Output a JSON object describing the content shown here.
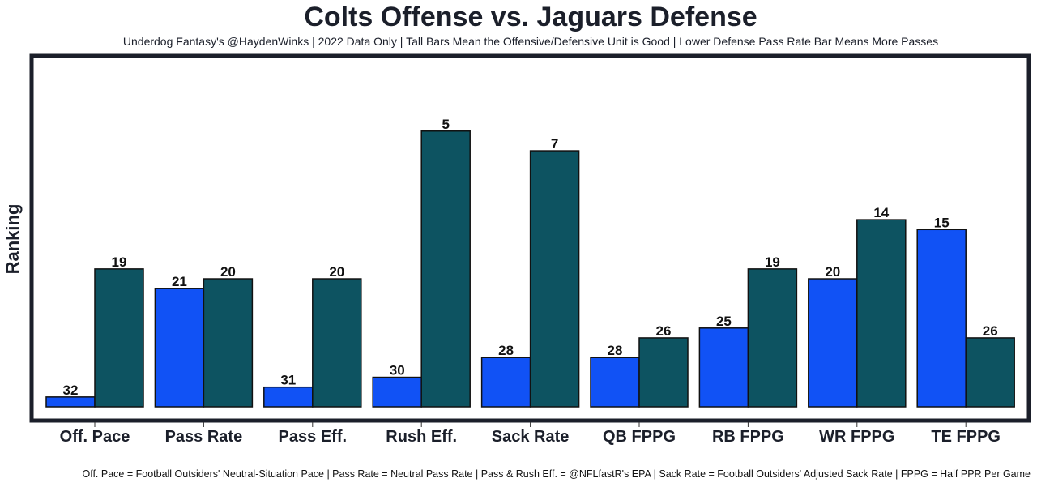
{
  "chart_data": {
    "type": "bar",
    "title": "Colts Offense vs. Jaguars Defense",
    "subtitle": "Underdog Fantasy's @HaydenWinks | 2022 Data Only | Tall Bars Mean the Offensive/Defensive Unit is Good | Lower Defense Pass Rate Bar Means More Passes",
    "xlabel": "",
    "ylabel": "Ranking",
    "categories": [
      "Off. Pace",
      "Pass Rate",
      "Pass Eff.",
      "Rush Eff.",
      "Sack Rate",
      "QB FPPG",
      "RB FPPG",
      "WR FPPG",
      "TE FPPG"
    ],
    "series": [
      {
        "name": "Colts Offense",
        "color": "#1152f5",
        "values": [
          32,
          21,
          31,
          30,
          28,
          28,
          25,
          20,
          15
        ]
      },
      {
        "name": "Jaguars Defense",
        "color": "#0d5361",
        "values": [
          19,
          20,
          20,
          5,
          7,
          26,
          19,
          14,
          26
        ]
      }
    ],
    "value_encoding": "rank (1 = best, tallest bar; 32 = worst, shortest bar)",
    "ylim": [
      33,
      0
    ],
    "y_ticks_shown": false,
    "grid": false,
    "legend": "none",
    "footnote": "Off. Pace = Football Outsiders' Neutral-Situation Pace | Pass Rate = Neutral Pass Rate | Pass & Rush Eff. = @NFLfastR's EPA | Sack Rate = Football Outsiders' Adjusted Sack Rate | FPPG = Half PPR Per Game"
  },
  "colors": {
    "frame": "#1b1f2a",
    "bar_outline": "#111111"
  }
}
